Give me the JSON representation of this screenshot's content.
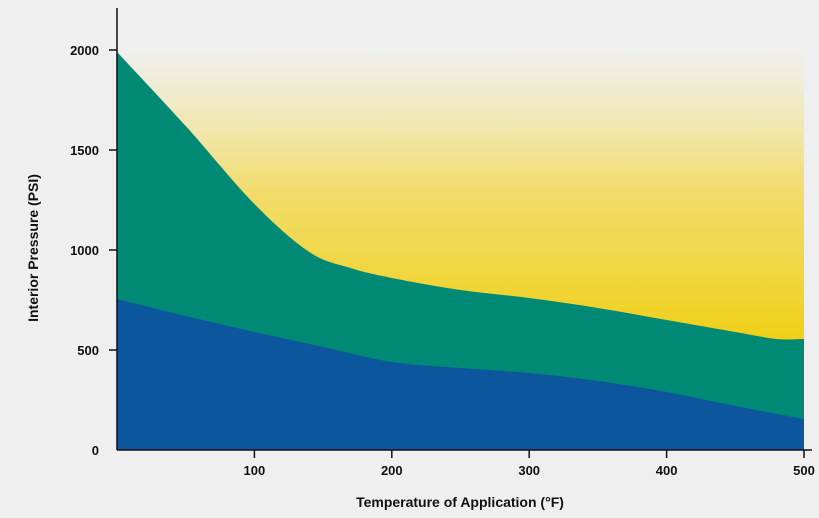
{
  "chart_data": {
    "type": "area",
    "xlabel": "Temperature of Application (°F)",
    "ylabel": "Interior Pressure (PSI)",
    "xlim": [
      0,
      500
    ],
    "ylim": [
      0,
      2000
    ],
    "x_ticks": [
      100,
      200,
      300,
      400,
      500
    ],
    "y_ticks": [
      0,
      500,
      1000,
      1500,
      2000
    ],
    "grid": false,
    "series": [
      {
        "color": "#0c569e",
        "x": [
          0,
          50,
          100,
          150,
          200,
          250,
          300,
          350,
          400,
          450,
          500
        ],
        "y": [
          755,
          670,
          590,
          515,
          440,
          410,
          385,
          345,
          290,
          220,
          155
        ]
      },
      {
        "color": "#008a75",
        "x": [
          0,
          50,
          100,
          140,
          170,
          200,
          250,
          300,
          350,
          400,
          450,
          480,
          500
        ],
        "y": [
          1990,
          1620,
          1230,
          990,
          910,
          860,
          800,
          760,
          710,
          650,
          590,
          555,
          555
        ]
      },
      {
        "color": "#f0cf10",
        "x": [
          0,
          500
        ],
        "y": [
          2000,
          2000
        ]
      }
    ]
  }
}
